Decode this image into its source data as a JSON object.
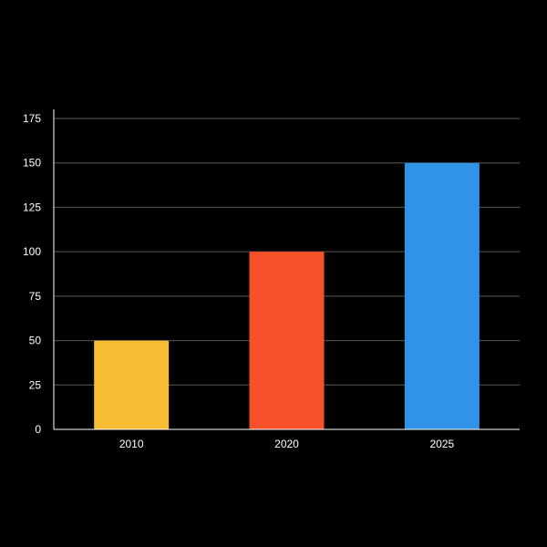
{
  "colors": {
    "background": "#000000",
    "grid": "#5a5a5a",
    "axis": "#ffffff",
    "text": "#ffffff"
  },
  "chart_data": {
    "type": "bar",
    "categories": [
      "2010",
      "2020",
      "2025"
    ],
    "values": [
      50,
      100,
      150
    ],
    "bar_colors": [
      "#F6BD33",
      "#F6502B",
      "#3093E8"
    ],
    "title": "",
    "xlabel": "",
    "ylabel": "",
    "ylim": [
      0,
      175
    ],
    "yticks": [
      0,
      25,
      50,
      75,
      100,
      125,
      150,
      175
    ],
    "grid": true,
    "legend": "none"
  }
}
